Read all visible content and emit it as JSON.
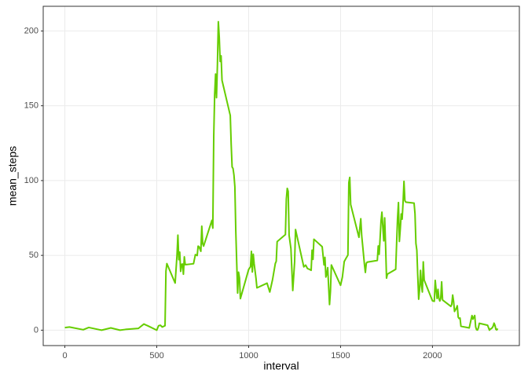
{
  "chart_data": {
    "type": "line",
    "x_label": "interval",
    "y_label": "mean_steps",
    "xlim": [
      -117.75,
      2472.75
    ],
    "ylim": [
      -10.3,
      216.5
    ],
    "xticks": [
      0,
      500,
      1000,
      1500,
      2000
    ],
    "yticks": [
      0,
      50,
      100,
      150,
      200
    ],
    "grid": true,
    "x": [
      0,
      25,
      100,
      130,
      200,
      250,
      300,
      330,
      400,
      430,
      440,
      450,
      500,
      510,
      520,
      530,
      545,
      550,
      555,
      600,
      610,
      615,
      620,
      625,
      630,
      635,
      640,
      645,
      650,
      655,
      700,
      710,
      720,
      725,
      730,
      740,
      745,
      750,
      755,
      800,
      805,
      810,
      815,
      820,
      825,
      830,
      835,
      840,
      845,
      850,
      855,
      900,
      905,
      910,
      915,
      920,
      925,
      930,
      935,
      940,
      945,
      950,
      955,
      1000,
      1010,
      1015,
      1020,
      1025,
      1030,
      1040,
      1045,
      1100,
      1115,
      1130,
      1145,
      1150,
      1155,
      1200,
      1205,
      1210,
      1215,
      1220,
      1230,
      1240,
      1250,
      1255,
      1300,
      1310,
      1320,
      1330,
      1340,
      1345,
      1350,
      1355,
      1400,
      1410,
      1415,
      1420,
      1425,
      1430,
      1440,
      1445,
      1450,
      1500,
      1510,
      1520,
      1530,
      1540,
      1545,
      1550,
      1555,
      1600,
      1610,
      1615,
      1620,
      1630,
      1635,
      1640,
      1645,
      1700,
      1705,
      1710,
      1715,
      1720,
      1725,
      1730,
      1735,
      1740,
      1745,
      1750,
      1755,
      1800,
      1805,
      1810,
      1815,
      1820,
      1825,
      1830,
      1835,
      1840,
      1845,
      1850,
      1855,
      1900,
      1905,
      1910,
      1915,
      1920,
      1925,
      1930,
      1935,
      1940,
      1945,
      1950,
      1955,
      2000,
      2010,
      2015,
      2020,
      2025,
      2030,
      2035,
      2040,
      2045,
      2050,
      2055,
      2100,
      2105,
      2110,
      2115,
      2120,
      2130,
      2135,
      2140,
      2145,
      2150,
      2155,
      2200,
      2215,
      2220,
      2225,
      2230,
      2235,
      2240,
      2245,
      2250,
      2255,
      2300,
      2310,
      2315,
      2320,
      2325,
      2330,
      2335,
      2340,
      2345,
      2350,
      2355
    ],
    "series": [
      {
        "name": "mean_steps",
        "color": "#66CD00",
        "values": [
          1.7,
          2.1,
          0.3,
          1.8,
          0,
          1.5,
          0,
          0.5,
          1.2,
          4.1,
          3.5,
          3.0,
          0,
          3.0,
          3.3,
          2.1,
          3.0,
          39.5,
          44.5,
          31.5,
          49.9,
          63.5,
          47.1,
          52.2,
          39.3,
          44.0,
          44.2,
          37.4,
          49.0,
          43.8,
          44.4,
          50.5,
          49.9,
          56.2,
          55.8,
          52.7,
          69.5,
          57.8,
          56.2,
          73.4,
          68.2,
          129.4,
          157.5,
          171.2,
          155.4,
          177.3,
          206.2,
          195.9,
          179.6,
          183.4,
          167.0,
          143.5,
          124.0,
          109.1,
          108.1,
          103.7,
          95.9,
          66.2,
          45.2,
          24.8,
          38.8,
          35.0,
          21.1,
          40.6,
          42.4,
          52.7,
          38.9,
          50.8,
          44.3,
          34.6,
          28.3,
          31.4,
          25.5,
          33.8,
          44.6,
          46.0,
          59.2,
          63.9,
          87.7,
          94.8,
          92.8,
          63.4,
          54.5,
          26.5,
          45.6,
          67.3,
          42.3,
          43.5,
          41.2,
          40.7,
          40.0,
          53.5,
          47.3,
          60.8,
          55.8,
          43.6,
          48.7,
          35.5,
          37.5,
          41.8,
          17.1,
          26.1,
          43.6,
          30.0,
          35.5,
          45.9,
          48.1,
          50.2,
          98.7,
          102.1,
          84.0,
          62.1,
          74.5,
          63.2,
          56.9,
          43.9,
          38.6,
          44.7,
          45.5,
          46.6,
          56.3,
          50.7,
          61.2,
          72.7,
          78.9,
          68.9,
          59.7,
          75.1,
          56.5,
          34.8,
          37.5,
          40.7,
          58.0,
          74.7,
          85.3,
          59.3,
          67.8,
          77.7,
          74.2,
          85.3,
          99.5,
          86.6,
          85.6,
          84.9,
          77.8,
          58.0,
          53.4,
          36.3,
          20.7,
          27.4,
          40.0,
          30.2,
          25.5,
          45.7,
          33.5,
          19.6,
          19.3,
          33.3,
          26.8,
          21.2,
          27.3,
          21.3,
          19.5,
          21.3,
          32.3,
          20.2,
          15.9,
          17.2,
          23.5,
          19.2,
          12.5,
          14.7,
          16.3,
          8.7,
          7.8,
          8.1,
          2.6,
          1.5,
          9.8,
          7.4,
          8.7,
          9.8,
          2.2,
          0.3,
          0.1,
          1.6,
          4.6,
          3.3,
          0,
          0.8,
          1.0,
          1.6,
          2.6,
          4.7,
          3.3,
          0.6,
          0.2,
          1.1
        ]
      }
    ]
  }
}
